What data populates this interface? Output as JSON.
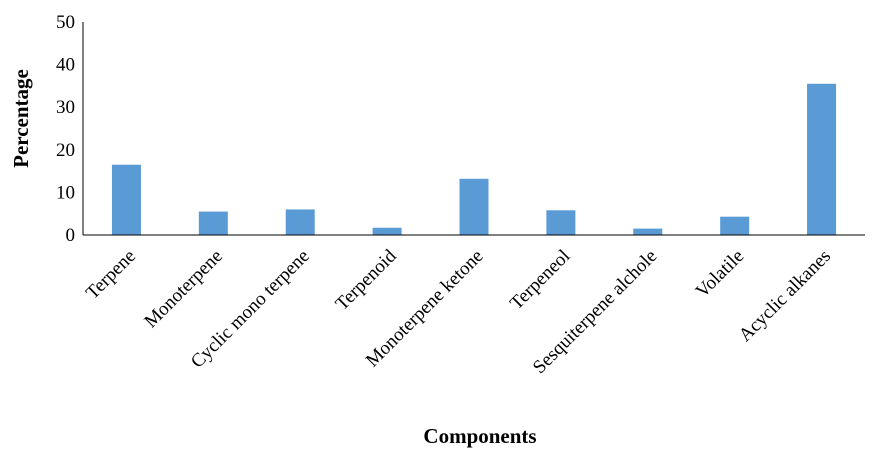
{
  "chart_data": {
    "type": "bar",
    "title": "",
    "xlabel": "Components",
    "ylabel": "Percentage",
    "ylim": [
      0,
      50
    ],
    "yticks": [
      0,
      10,
      20,
      30,
      40,
      50
    ],
    "grid": false,
    "legend": "none",
    "bar_color": "#5b9bd5",
    "categories": [
      "Terpene",
      "Monoterpene",
      "Cyclic mono terpene",
      "Terpenoid",
      "Monoterpene ketone",
      "Terpeneol",
      "Sesquiterpene alchole",
      "Volatile",
      "Acyclic alkanes"
    ],
    "values": [
      16.5,
      5.5,
      6.0,
      1.7,
      13.2,
      5.8,
      1.5,
      4.3,
      35.5
    ]
  }
}
